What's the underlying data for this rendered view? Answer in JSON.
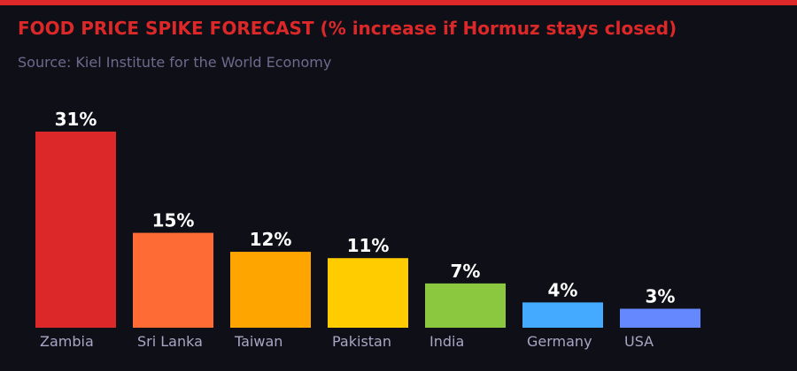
{
  "chart_data": {
    "type": "bar",
    "title": "FOOD PRICE SPIKE FORECAST (% increase if Hormuz stays closed)",
    "subtitle": "Source: Kiel Institute for the World Economy",
    "xlabel": "",
    "ylabel": "",
    "categories": [
      "Zambia",
      "Sri Lanka",
      "Taiwan",
      "Pakistan",
      "India",
      "Germany",
      "USA"
    ],
    "values": [
      31,
      15,
      12,
      11,
      7,
      4,
      3
    ],
    "data_labels": [
      "31%",
      "15%",
      "12%",
      "11%",
      "7%",
      "4%",
      "3%"
    ],
    "colors": [
      "#dc2828",
      "#ff6b35",
      "#ffa500",
      "#ffcc00",
      "#8bc840",
      "#44aaff",
      "#6688ff"
    ],
    "ylim": [
      0,
      31
    ],
    "grid": false,
    "legend": "none"
  },
  "theme": {
    "accent": "#dc2828",
    "background": "#0f0f17"
  }
}
